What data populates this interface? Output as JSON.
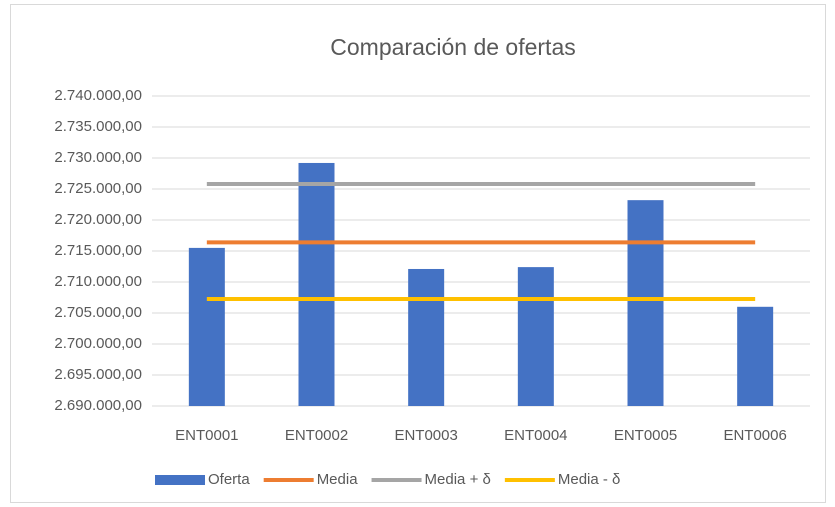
{
  "chart_data": {
    "type": "bar",
    "title": "Comparación de ofertas",
    "categories": [
      "ENT0001",
      "ENT0002",
      "ENT0003",
      "ENT0004",
      "ENT0005",
      "ENT0006"
    ],
    "series": [
      {
        "name": "Oferta",
        "type": "bar",
        "color": "#4472c4",
        "values": [
          2715500,
          2729200,
          2712100,
          2712400,
          2723200,
          2706000
        ]
      },
      {
        "name": "Media",
        "type": "line",
        "color": "#ed7d31",
        "values": [
          2716400,
          2716400,
          2716400,
          2716400,
          2716400,
          2716400
        ]
      },
      {
        "name": "Media + δ",
        "type": "line",
        "color": "#a5a5a5",
        "values": [
          2725800,
          2725800,
          2725800,
          2725800,
          2725800,
          2725800
        ]
      },
      {
        "name": "Media - δ",
        "type": "line",
        "color": "#ffc000",
        "values": [
          2707250,
          2707250,
          2707250,
          2707250,
          2707250,
          2707250
        ]
      }
    ],
    "ylim": [
      2690000,
      2740000
    ],
    "yticks": [
      {
        "value": 2690000,
        "label": "2.690.000,00"
      },
      {
        "value": 2695000,
        "label": "2.695.000,00"
      },
      {
        "value": 2700000,
        "label": "2.700.000,00"
      },
      {
        "value": 2705000,
        "label": "2.705.000,00"
      },
      {
        "value": 2710000,
        "label": "2.710.000,00"
      },
      {
        "value": 2715000,
        "label": "2.715.000,00"
      },
      {
        "value": 2720000,
        "label": "2.720.000,00"
      },
      {
        "value": 2725000,
        "label": "2.725.000,00"
      },
      {
        "value": 2730000,
        "label": "2.730.000,00"
      },
      {
        "value": 2735000,
        "label": "2.735.000,00"
      },
      {
        "value": 2740000,
        "label": "2.740.000,00"
      }
    ],
    "grid": true,
    "legend": "bottom"
  }
}
